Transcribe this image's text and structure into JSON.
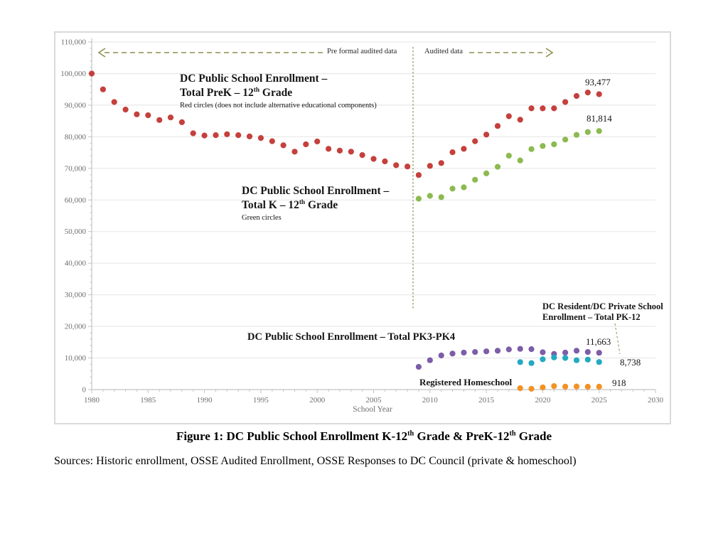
{
  "page": {
    "caption": {
      "part1": "Figure 1: DC Public School Enrollment K-12",
      "sup1": "th",
      "part2": " Grade & PreK-12",
      "sup2": "th",
      "part3": " Grade"
    },
    "sources": "Sources: Historic enrollment, OSSE Audited Enrollment, OSSE Responses to DC Council (private & homeschool)"
  },
  "annotations": {
    "pre_audited": "Pre formal audited data",
    "audited": "Audited data",
    "prek_series": {
      "line1": "DC Public School Enrollment –",
      "line2a": "Total PreK – 12",
      "line2sup": "th",
      "line2b": " Grade",
      "line3": "Red circles (does not include alternative educational components)"
    },
    "k12_series": {
      "line1": "DC Public School Enrollment –",
      "line2a": "Total K – 12",
      "line2sup": "th",
      "line2b": " Grade",
      "line3": "Green circles"
    },
    "pk34_series": "DC Public School Enrollment – Total PK3-PK4",
    "private_series": {
      "line1": "DC Resident/DC Private School",
      "line2": "Enrollment – Total PK-12"
    },
    "homeschool_series": "Registered Homeschool",
    "end_values": {
      "prek": "93,477",
      "k12": "81,814",
      "pk34": "11,663",
      "private": "8,738",
      "homeschool": "918"
    }
  },
  "chart_data": {
    "type": "scatter",
    "title": "",
    "xlabel": "School Year",
    "ylabel": "",
    "xlim": [
      1980,
      2030
    ],
    "ylim": [
      0,
      110000
    ],
    "x_tick_step": 5,
    "x_minor_step": 1,
    "y_tick_step": 10000,
    "y_minor_step": 2000,
    "grid": "horizontal-y",
    "legend_position": "none",
    "divider_year": 2008.5,
    "colors": {
      "gridline": "#e9e9e9",
      "axis": "#c3c3c3",
      "tick_label": "#6e6e6e",
      "annotation": "#8e8e4e"
    },
    "series": [
      {
        "id": "prek12",
        "name": "DC Public School Enrollment – Total PreK–12th Grade",
        "color": "#c5403c",
        "points": [
          [
            1980,
            100000
          ],
          [
            1981,
            95000
          ],
          [
            1982,
            91000
          ],
          [
            1983,
            88600
          ],
          [
            1984,
            87100
          ],
          [
            1985,
            86800
          ],
          [
            1986,
            85300
          ],
          [
            1987,
            86100
          ],
          [
            1988,
            84600
          ],
          [
            1989,
            81100
          ],
          [
            1990,
            80400
          ],
          [
            1991,
            80500
          ],
          [
            1992,
            80800
          ],
          [
            1993,
            80500
          ],
          [
            1994,
            80100
          ],
          [
            1995,
            79600
          ],
          [
            1996,
            78600
          ],
          [
            1997,
            77300
          ],
          [
            1998,
            75300
          ],
          [
            1999,
            77600
          ],
          [
            2000,
            78500
          ],
          [
            2001,
            76200
          ],
          [
            2002,
            75600
          ],
          [
            2003,
            75300
          ],
          [
            2004,
            74200
          ],
          [
            2005,
            73000
          ],
          [
            2006,
            72200
          ],
          [
            2007,
            71000
          ],
          [
            2008,
            70600
          ],
          [
            2009,
            67900
          ],
          [
            2010,
            70800
          ],
          [
            2011,
            71700
          ],
          [
            2012,
            75100
          ],
          [
            2013,
            76200
          ],
          [
            2014,
            78600
          ],
          [
            2015,
            80700
          ],
          [
            2016,
            83400
          ],
          [
            2017,
            86500
          ],
          [
            2018,
            85400
          ],
          [
            2019,
            89000
          ],
          [
            2020,
            89000
          ],
          [
            2021,
            89000
          ],
          [
            2022,
            91000
          ],
          [
            2023,
            92900
          ],
          [
            2024,
            94000
          ],
          [
            2025,
            93477
          ]
        ]
      },
      {
        "id": "k12",
        "name": "DC Public School Enrollment – Total K–12th Grade",
        "color": "#8cba50",
        "points": [
          [
            2009,
            60400
          ],
          [
            2010,
            61300
          ],
          [
            2011,
            60900
          ],
          [
            2012,
            63600
          ],
          [
            2013,
            64000
          ],
          [
            2014,
            66400
          ],
          [
            2015,
            68400
          ],
          [
            2016,
            70500
          ],
          [
            2017,
            74000
          ],
          [
            2018,
            72500
          ],
          [
            2019,
            76100
          ],
          [
            2020,
            77100
          ],
          [
            2021,
            77600
          ],
          [
            2022,
            79100
          ],
          [
            2023,
            80600
          ],
          [
            2024,
            81500
          ],
          [
            2025,
            81814
          ]
        ]
      },
      {
        "id": "pk34",
        "name": "DC Public School Enrollment – Total PK3-PK4",
        "color": "#7c5da8",
        "points": [
          [
            2009,
            7200
          ],
          [
            2010,
            9300
          ],
          [
            2011,
            10800
          ],
          [
            2012,
            11400
          ],
          [
            2013,
            11700
          ],
          [
            2014,
            11900
          ],
          [
            2015,
            12100
          ],
          [
            2016,
            12300
          ],
          [
            2017,
            12700
          ],
          [
            2018,
            12900
          ],
          [
            2019,
            12800
          ],
          [
            2020,
            11800
          ],
          [
            2021,
            11300
          ],
          [
            2022,
            11700
          ],
          [
            2023,
            12300
          ],
          [
            2024,
            11900
          ],
          [
            2025,
            11663
          ]
        ]
      },
      {
        "id": "private-pk12",
        "name": "DC Resident/DC Private School Enrollment – Total PK-12",
        "color": "#23a9c0",
        "points": [
          [
            2018,
            8700
          ],
          [
            2019,
            8400
          ],
          [
            2020,
            9600
          ],
          [
            2021,
            10200
          ],
          [
            2022,
            10000
          ],
          [
            2023,
            9300
          ],
          [
            2024,
            9500
          ],
          [
            2025,
            8738
          ]
        ]
      },
      {
        "id": "homeschool",
        "name": "Registered Homeschool",
        "color": "#f39122",
        "points": [
          [
            2018,
            450
          ],
          [
            2019,
            250
          ],
          [
            2020,
            700
          ],
          [
            2021,
            1100
          ],
          [
            2022,
            950
          ],
          [
            2023,
            1000
          ],
          [
            2024,
            900
          ],
          [
            2025,
            918
          ]
        ]
      }
    ]
  }
}
